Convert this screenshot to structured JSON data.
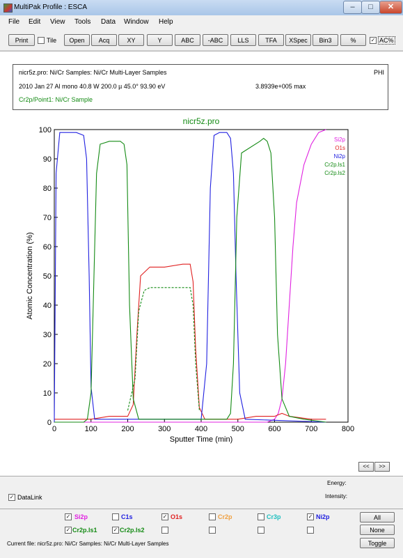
{
  "window": {
    "title": "MultiPak Profile : ESCA"
  },
  "menu": [
    "File",
    "Edit",
    "View",
    "Tools",
    "Data",
    "Window",
    "Help"
  ],
  "toolbar": {
    "print": "Print",
    "tile": "Tile",
    "tile_checked": false,
    "buttons": [
      "Open",
      "Acq",
      "XY",
      "Y",
      "ABC",
      "-ABC",
      "LLS",
      "TFA",
      "XSpec",
      "Bin3",
      "%"
    ],
    "ac_label": "AC%",
    "ac_checked": true
  },
  "info": {
    "line1": "nicr5z.pro: Ni/Cr Samples: Ni/Cr Multi-Layer Samples",
    "vendor": "PHI",
    "line2": "2010 Jan 27  Al mono  40.8 W  200.0 µ  45.0°  93.90 eV",
    "max": "3.8939e+005 max",
    "line3": "Cr2p/Point1: Ni/Cr Sample"
  },
  "chart_data": {
    "type": "line",
    "title": "nicr5z.pro",
    "xlabel": "Sputter Time (min)",
    "ylabel": "Atomic Concentration (%)",
    "xlim": [
      0,
      800
    ],
    "ylim": [
      0,
      100
    ],
    "xticks": [
      0,
      100,
      200,
      300,
      400,
      500,
      600,
      700,
      800
    ],
    "yticks": [
      0,
      10,
      20,
      30,
      40,
      50,
      60,
      70,
      80,
      90,
      100
    ],
    "legend_position": "top-right",
    "series": [
      {
        "name": "Si2p",
        "color": "#e020e0",
        "x": [
          0,
          560,
          580,
          600,
          610,
          620,
          630,
          640,
          650,
          660,
          680,
          700,
          720,
          740
        ],
        "y": [
          0,
          0,
          0,
          1,
          3,
          8,
          20,
          40,
          60,
          75,
          88,
          95,
          99,
          100
        ]
      },
      {
        "name": "O1s",
        "color": "#e02020",
        "x": [
          0,
          10,
          50,
          100,
          150,
          200,
          215,
          225,
          235,
          260,
          300,
          350,
          370,
          378,
          385,
          395,
          410,
          450,
          500,
          550,
          600,
          620,
          640,
          700,
          740
        ],
        "y": [
          1,
          1,
          1,
          1,
          2,
          2,
          6,
          30,
          50,
          53,
          53,
          54,
          54,
          48,
          25,
          5,
          1,
          1,
          1,
          2,
          2,
          3,
          2,
          1,
          1
        ]
      },
      {
        "name": "Ni2p",
        "color": "#2020e0",
        "x": [
          0,
          5,
          15,
          60,
          80,
          88,
          95,
          100,
          110,
          200,
          400,
          415,
          425,
          435,
          450,
          470,
          480,
          488,
          495,
          505,
          520,
          740
        ],
        "y": [
          0,
          85,
          99,
          99,
          98,
          90,
          50,
          12,
          1,
          1,
          1,
          20,
          80,
          98,
          99,
          99,
          97,
          85,
          50,
          10,
          1,
          0
        ]
      },
      {
        "name": "Cr2p.ls1",
        "color": "#138a13",
        "x": [
          0,
          80,
          90,
          100,
          108,
          115,
          125,
          150,
          180,
          190,
          198,
          205,
          215,
          230,
          400,
          470,
          480,
          488,
          497,
          510,
          560,
          570,
          580,
          590,
          600,
          608,
          620,
          640,
          680,
          740
        ],
        "y": [
          0,
          0,
          1,
          10,
          50,
          85,
          95,
          96,
          96,
          95,
          88,
          40,
          8,
          1,
          1,
          1,
          3,
          20,
          70,
          92,
          96,
          97,
          96,
          92,
          70,
          30,
          8,
          2,
          1,
          0
        ]
      },
      {
        "name": "Cr2p.ls2",
        "color": "#138a13",
        "dashed": true,
        "x": [
          200,
          220,
          230,
          245,
          260,
          300,
          345,
          370,
          378,
          385,
          395
        ],
        "y": [
          4,
          15,
          38,
          45,
          46,
          46,
          46,
          46,
          40,
          20,
          4
        ]
      }
    ]
  },
  "nav": {
    "prev": "<<",
    "next": ">>"
  },
  "panel": {
    "energy": "Energy:",
    "intensity": "Intensity:",
    "datalink": "DataLink",
    "datalink_checked": true
  },
  "elements_row1": [
    {
      "name": "Si2p",
      "color": "#e020e0",
      "checked": true
    },
    {
      "name": "C1s",
      "color": "#2020e0",
      "checked": false
    },
    {
      "name": "O1s",
      "color": "#e02020",
      "checked": true
    },
    {
      "name": "Cr2p",
      "color": "#f0a040",
      "checked": false
    },
    {
      "name": "Cr3p",
      "color": "#20c0c0",
      "checked": false
    },
    {
      "name": "Ni2p",
      "color": "#2020e0",
      "checked": true
    }
  ],
  "elements_row2": [
    {
      "name": "Cr2p.ls1",
      "color": "#138a13",
      "checked": true
    },
    {
      "name": "Cr2p.ls2",
      "color": "#138a13",
      "checked": true
    }
  ],
  "side_buttons": {
    "all": "All",
    "none": "None",
    "toggle": "Toggle"
  },
  "status": "Current file: nicr5z.pro: Ni/Cr Samples: Ni/Cr Multi-Layer Samples"
}
